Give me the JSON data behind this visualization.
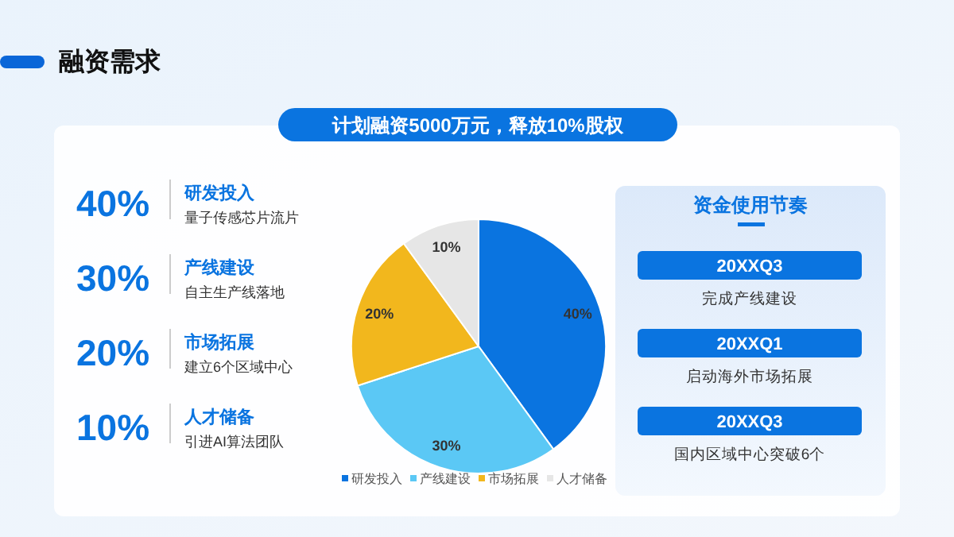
{
  "chart_data": {
    "type": "pie",
    "title": "融资需求",
    "subtitle": "计划融资5000万元，释放10%股权",
    "categories": [
      "研发投入",
      "产线建设",
      "市场拓展",
      "人才储备"
    ],
    "values": [
      40,
      30,
      20,
      10
    ],
    "colors": [
      "#0a74e0",
      "#5bc8f5",
      "#f2b71d",
      "#e6e6e6"
    ],
    "value_labels": [
      "40%",
      "30%",
      "20%",
      "10%"
    ],
    "legend": "bottom",
    "annotations": [
      "40%",
      "研发投入",
      "量子传感芯片流片",
      "30%",
      "产线建设",
      "自主生产线落地",
      "20%",
      "市场拓展",
      "建立6个区域中心",
      "10%",
      "人才储备",
      "引进AI算法团队",
      "资金使用节奏",
      "20XXQ3",
      "完成产线建设",
      "20XXQ1",
      "启动海外市场拓展",
      "20XXQ3",
      "国内区域中心突破6个"
    ]
  }
}
